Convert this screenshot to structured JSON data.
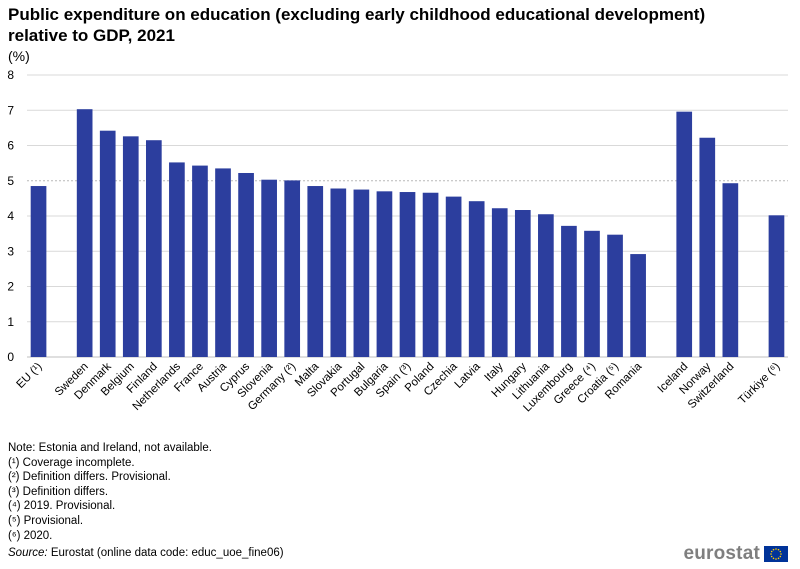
{
  "chart_data": {
    "type": "bar",
    "title": "Public expenditure on education (excluding early childhood educational development) relative to GDP, 2021",
    "unit_label": "(%)",
    "categories": [
      "EU (¹)",
      "",
      "Sweden",
      "Denmark",
      "Belgium",
      "Finland",
      "Netherlands",
      "France",
      "Austria",
      "Cyprus",
      "Slovenia",
      "Germany (²)",
      "Malta",
      "Slovakia",
      "Portugal",
      "Bulgaria",
      "Spain (³)",
      "Poland",
      "Czechia",
      "Latvia",
      "Italy",
      "Hungary",
      "Lithuania",
      "Luxembourg",
      "Greece (⁴)",
      "Croatia (⁵)",
      "Romania",
      "",
      "Iceland",
      "Norway",
      "Switzerland",
      "",
      "Türkiye (⁶)"
    ],
    "values": [
      4.85,
      null,
      7.03,
      6.42,
      6.26,
      6.15,
      5.52,
      5.43,
      5.35,
      5.22,
      5.03,
      5.01,
      4.85,
      4.78,
      4.75,
      4.7,
      4.68,
      4.66,
      4.55,
      4.42,
      4.22,
      4.17,
      4.05,
      3.72,
      3.58,
      3.47,
      2.92,
      null,
      6.96,
      6.22,
      4.93,
      null,
      4.02
    ],
    "ylim": [
      0,
      8
    ],
    "yticks": [
      0,
      1,
      2,
      3,
      4,
      5,
      6,
      7,
      8
    ],
    "bar_color": "#2c3e9e",
    "grid": true,
    "legend": "none"
  },
  "notes": [
    "Note: Estonia and Ireland, not available.",
    "(¹) Coverage incomplete.",
    "(²) Definition differs. Provisional.",
    "(³) Definition differs.",
    "(⁴) 2019. Provisional.",
    "(⁵) Provisional.",
    "(⁶) 2020."
  ],
  "source": {
    "label": "Source:",
    "text": " Eurostat (online data code: educ_uoe_fine06)"
  },
  "logo": {
    "text": "eurostat",
    "icon": "eu-flag-icon",
    "flag_color": "#003399",
    "star_color": "#ffcc00"
  }
}
